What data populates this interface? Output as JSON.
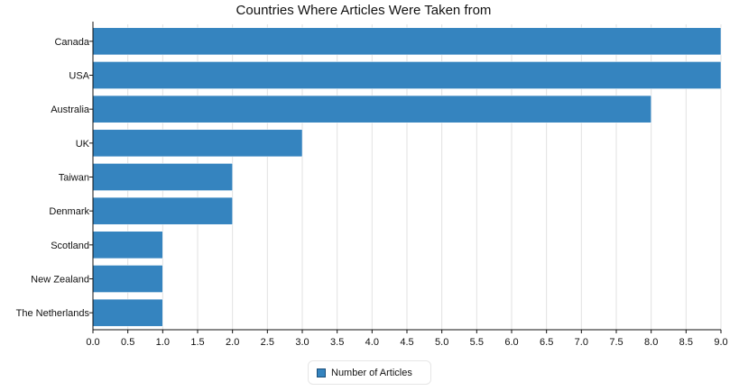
{
  "chart_data": {
    "type": "bar",
    "orientation": "horizontal",
    "title": "Countries Where Articles Were Taken from",
    "xlabel": "",
    "ylabel": "",
    "categories": [
      "Canada",
      "USA",
      "Australia",
      "UK",
      "Taiwan",
      "Denmark",
      "Scotland",
      "New Zealand",
      "The Netherlands"
    ],
    "series": [
      {
        "name": "Number of Articles",
        "values": [
          9,
          9,
          8,
          3,
          2,
          2,
          1,
          1,
          1
        ],
        "color": "#3584bf"
      }
    ],
    "xlim": [
      0,
      9
    ],
    "xticks": [
      "0.0",
      "0.5",
      "1.0",
      "1.5",
      "2.0",
      "2.5",
      "3.0",
      "3.5",
      "4.0",
      "4.5",
      "5.0",
      "5.5",
      "6.0",
      "6.5",
      "7.0",
      "7.5",
      "8.0",
      "8.5",
      "9.0"
    ],
    "grid": "vertical",
    "legend_position": "bottom-center"
  }
}
